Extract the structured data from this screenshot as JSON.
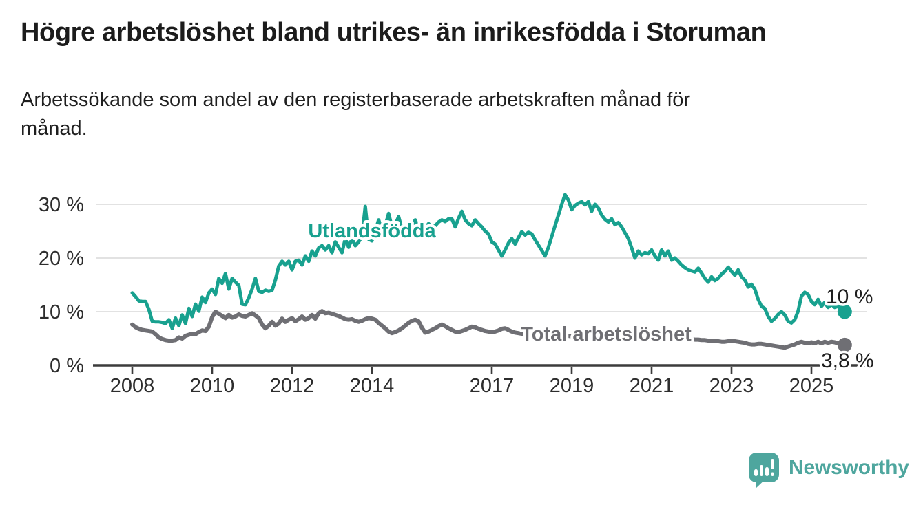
{
  "header": {
    "title": "Högre arbetslöshet bland utrikes- än inrikesfödda i Storuman",
    "subtitle": "Arbetssökande som andel av den registerbaserade arbetskraften månad för\nmånad."
  },
  "branding": {
    "name": "Newsworthy",
    "icon": "bar-chart-speech-bubble-icon",
    "color": "#4ea69e"
  },
  "chart_data": {
    "type": "line",
    "x_start": "2008-01",
    "x_interval": "monthly",
    "x_tick_years": [
      2008,
      2010,
      2012,
      2014,
      2017,
      2019,
      2021,
      2023,
      2025
    ],
    "y_ticks": [
      0,
      10,
      20,
      30
    ],
    "y_tick_suffix": " %",
    "ylim": [
      0,
      33.5
    ],
    "grid": "horizontal",
    "legend": "inline-labels",
    "series": [
      {
        "name": "Utlandsfödda",
        "color": "#18a18f",
        "end_value": 10.0,
        "end_label": "10 %",
        "values": [
          13.5,
          12.8,
          12.0,
          11.9,
          11.9,
          10.4,
          8.2,
          8.1,
          8.1,
          8.0,
          7.8,
          8.5,
          6.9,
          8.8,
          7.4,
          9.4,
          7.8,
          10.6,
          9.1,
          11.4,
          10.1,
          12.7,
          11.7,
          13.5,
          14.2,
          13.2,
          16.2,
          15.3,
          17.1,
          14.2,
          16.2,
          15.5,
          14.9,
          11.4,
          11.3,
          12.6,
          14.2,
          16.2,
          13.8,
          13.6,
          14.0,
          13.8,
          14.0,
          15.9,
          18.5,
          19.4,
          18.7,
          19.4,
          17.8,
          19.4,
          19.6,
          18.7,
          20.4,
          19.4,
          21.3,
          20.4,
          21.9,
          22.3,
          21.5,
          22.3,
          21.0,
          23.0,
          22.0,
          21.0,
          23.6,
          22.0,
          23.6,
          22.3,
          23.0,
          24.0,
          29.6,
          23.5,
          23.2,
          25.0,
          27.1,
          25.1,
          26.0,
          28.3,
          25.8,
          26.2,
          27.7,
          25.4,
          26.0,
          25.6,
          26.0,
          27.1,
          25.5,
          26.2,
          25.5,
          26.4,
          25.8,
          26.0,
          26.7,
          27.1,
          26.8,
          27.3,
          27.3,
          25.8,
          27.4,
          28.7,
          27.1,
          26.4,
          26.0,
          27.1,
          26.4,
          25.8,
          25.0,
          24.5,
          23.0,
          22.6,
          21.5,
          20.4,
          21.5,
          22.8,
          23.6,
          22.6,
          23.8,
          24.9,
          24.3,
          24.8,
          24.5,
          23.4,
          22.4,
          21.4,
          20.4,
          22.0,
          24.0,
          26.0,
          28.0,
          30.0,
          31.8,
          30.8,
          29.0,
          29.8,
          30.2,
          30.5,
          29.9,
          30.5,
          28.7,
          30.0,
          29.3,
          28.0,
          27.2,
          26.7,
          27.3,
          26.2,
          26.6,
          25.8,
          24.7,
          23.6,
          21.9,
          20.0,
          21.3,
          20.6,
          21.0,
          20.8,
          21.5,
          20.4,
          19.6,
          21.5,
          20.4,
          21.3,
          19.6,
          20.0,
          19.4,
          18.7,
          18.2,
          17.8,
          17.6,
          17.4,
          18.1,
          17.2,
          16.2,
          15.5,
          16.5,
          15.8,
          16.2,
          17.0,
          17.5,
          18.3,
          17.5,
          16.8,
          17.8,
          16.5,
          15.9,
          14.6,
          15.1,
          14.2,
          12.3,
          11.0,
          10.6,
          9.1,
          8.2,
          8.7,
          9.5,
          10.0,
          9.4,
          8.2,
          7.9,
          8.5,
          10.1,
          12.9,
          13.6,
          13.2,
          11.9,
          11.3,
          12.3,
          11.0,
          11.7,
          10.8,
          11.4,
          10.8,
          11.0,
          10.4,
          10.0
        ]
      },
      {
        "name": "Total arbetslöshet",
        "color": "#6f6f74",
        "end_value": 3.8,
        "end_label": "3,8 %",
        "values": [
          7.6,
          7.1,
          6.8,
          6.6,
          6.5,
          6.4,
          6.3,
          5.8,
          5.2,
          4.9,
          4.7,
          4.6,
          4.6,
          4.7,
          5.2,
          5.0,
          5.5,
          5.7,
          5.9,
          5.8,
          6.2,
          6.5,
          6.4,
          7.2,
          9.0,
          10.0,
          9.6,
          9.2,
          8.8,
          9.4,
          8.9,
          9.1,
          9.5,
          9.2,
          9.1,
          9.4,
          9.7,
          9.3,
          8.8,
          7.6,
          6.9,
          7.4,
          8.1,
          7.4,
          7.8,
          8.7,
          8.1,
          8.5,
          8.8,
          8.2,
          8.6,
          9.1,
          8.5,
          8.8,
          9.4,
          8.7,
          9.7,
          10.1,
          9.7,
          9.8,
          9.6,
          9.4,
          9.2,
          8.9,
          8.6,
          8.5,
          8.6,
          8.3,
          8.1,
          8.3,
          8.6,
          8.8,
          8.7,
          8.5,
          7.9,
          7.4,
          6.9,
          6.3,
          6.0,
          6.2,
          6.5,
          6.9,
          7.4,
          7.9,
          8.3,
          8.5,
          8.2,
          7.0,
          6.1,
          6.3,
          6.6,
          6.9,
          7.3,
          7.6,
          7.3,
          6.9,
          6.6,
          6.3,
          6.2,
          6.4,
          6.6,
          6.9,
          7.2,
          7.1,
          6.8,
          6.6,
          6.4,
          6.3,
          6.2,
          6.3,
          6.5,
          6.8,
          6.9,
          6.6,
          6.3,
          6.1,
          6.0,
          5.9,
          5.8,
          5.9,
          6.0,
          6.1,
          6.0,
          5.8,
          5.6,
          5.5,
          5.4,
          5.5,
          5.6,
          5.7,
          5.6,
          5.5,
          5.4,
          5.3,
          5.3,
          5.2,
          5.3,
          5.4,
          5.5,
          5.6,
          5.7,
          5.8,
          5.9,
          6.0,
          6.1,
          6.2,
          6.4,
          6.3,
          6.2,
          6.1,
          6.0,
          5.9,
          5.8,
          5.7,
          5.6,
          5.5,
          5.5,
          5.4,
          5.4,
          5.3,
          5.3,
          5.2,
          5.2,
          5.1,
          5.1,
          5.0,
          5.0,
          4.9,
          4.9,
          4.8,
          4.8,
          4.7,
          4.7,
          4.6,
          4.6,
          4.5,
          4.5,
          4.4,
          4.4,
          4.5,
          4.6,
          4.5,
          4.4,
          4.3,
          4.2,
          4.0,
          3.9,
          3.9,
          4.0,
          4.0,
          3.9,
          3.8,
          3.7,
          3.6,
          3.5,
          3.4,
          3.3,
          3.5,
          3.7,
          3.9,
          4.2,
          4.4,
          4.2,
          4.1,
          4.3,
          4.1,
          4.4,
          4.1,
          4.4,
          4.2,
          4.4,
          4.3,
          4.1,
          4.0,
          3.8
        ]
      }
    ]
  }
}
